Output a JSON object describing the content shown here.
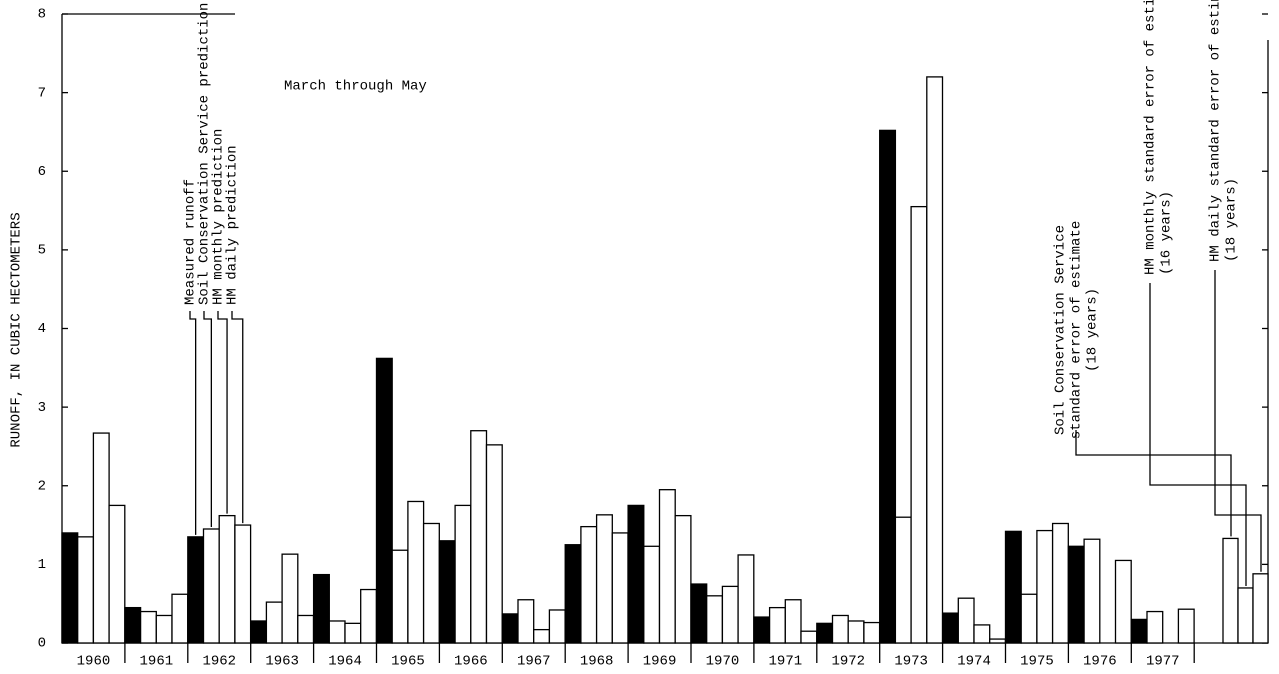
{
  "chart_data": {
    "type": "bar",
    "annotation": "March through May",
    "y_label": "RUNOFF, IN CUBIC HECTOMETERS",
    "categories": [
      "1960",
      "1961",
      "1962",
      "1963",
      "1964",
      "1965",
      "1966",
      "1967",
      "1968",
      "1969",
      "1970",
      "1971",
      "1972",
      "1973",
      "1974",
      "1975",
      "1976",
      "1977"
    ],
    "series": [
      {
        "name": "Measured runoff",
        "color": "#000000",
        "values": [
          1.4,
          0.45,
          1.35,
          0.28,
          0.87,
          3.62,
          1.3,
          0.37,
          1.25,
          1.75,
          0.75,
          0.33,
          0.25,
          6.52,
          0.38,
          1.42,
          1.23,
          0.3
        ]
      },
      {
        "name": "Soil Conservation Service prediction",
        "color": "#ffffff",
        "values": [
          1.35,
          0.4,
          1.45,
          0.52,
          0.28,
          1.18,
          1.75,
          0.55,
          1.48,
          1.23,
          0.6,
          0.45,
          0.35,
          1.6,
          0.57,
          0.62,
          1.32,
          0.4
        ]
      },
      {
        "name": "HM monthly prediction",
        "color": "#ffffff",
        "values": [
          2.67,
          0.35,
          1.62,
          1.13,
          0.25,
          1.8,
          2.7,
          0.17,
          1.63,
          1.95,
          0.72,
          0.55,
          0.28,
          5.55,
          0.23,
          1.43,
          null,
          null
        ]
      },
      {
        "name": "HM daily prediction",
        "color": "#ffffff",
        "values": [
          1.75,
          0.62,
          1.5,
          0.35,
          0.68,
          1.52,
          2.52,
          0.42,
          1.4,
          1.62,
          1.12,
          0.15,
          0.26,
          7.2,
          0.05,
          1.52,
          1.05,
          0.43
        ]
      }
    ],
    "standard_errors": [
      {
        "label": [
          "Soil Conservation Service",
          "standard error of estimate",
          "(18 years)"
        ],
        "value": 1.33
      },
      {
        "label": [
          "HM monthly standard error of estimate",
          "(16 years)"
        ],
        "value": 0.7
      },
      {
        "label": [
          "HM daily standard error of estimate",
          "(18 years)"
        ],
        "value": 0.88
      }
    ],
    "ylim": [
      0,
      8
    ],
    "yticks": [
      0,
      1,
      2,
      3,
      4,
      5,
      6,
      7,
      8
    ]
  }
}
